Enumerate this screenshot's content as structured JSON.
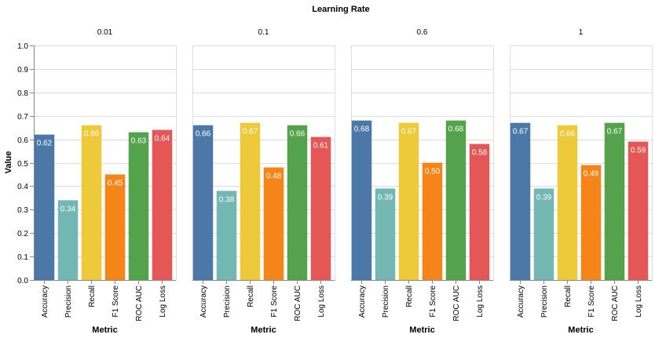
{
  "chart_data": {
    "type": "bar",
    "title": "Learning Rate",
    "facet_titles": [
      "0.01",
      "0.1",
      "0.6",
      "1"
    ],
    "categories": [
      "Accuracy",
      "Precision",
      "Recall",
      "F1 Score",
      "ROC AUC",
      "Log Loss"
    ],
    "colors": [
      "#4c78a8",
      "#72b7b2",
      "#eeca3b",
      "#f58518",
      "#54a24b",
      "#e45756"
    ],
    "xlabel": "Metric",
    "ylabel": "Value",
    "ylim": [
      0,
      1
    ],
    "yticks": [
      "0.0",
      "0.1",
      "0.2",
      "0.3",
      "0.4",
      "0.5",
      "0.6",
      "0.7",
      "0.8",
      "0.9",
      "1.0"
    ],
    "grid": true,
    "facets": [
      {
        "name": "0.01",
        "values": [
          0.62,
          0.34,
          0.66,
          0.45,
          0.63,
          0.64
        ],
        "labels": [
          "0.62",
          "0.34",
          "0.66",
          "0.45",
          "0.63",
          "0.64"
        ]
      },
      {
        "name": "0.1",
        "values": [
          0.66,
          0.38,
          0.67,
          0.48,
          0.66,
          0.61
        ],
        "labels": [
          "0.66",
          "0.38",
          "0.67",
          "0.48",
          "0.66",
          "0.61"
        ]
      },
      {
        "name": "0.6",
        "values": [
          0.68,
          0.39,
          0.67,
          0.5,
          0.68,
          0.58
        ],
        "labels": [
          "0.68",
          "0.39",
          "0.67",
          "0.50",
          "0.68",
          "0.58"
        ]
      },
      {
        "name": "1",
        "values": [
          0.67,
          0.39,
          0.66,
          0.49,
          0.67,
          0.59
        ],
        "labels": [
          "0.67",
          "0.39",
          "0.66",
          "0.49",
          "0.67",
          "0.59"
        ]
      }
    ]
  }
}
